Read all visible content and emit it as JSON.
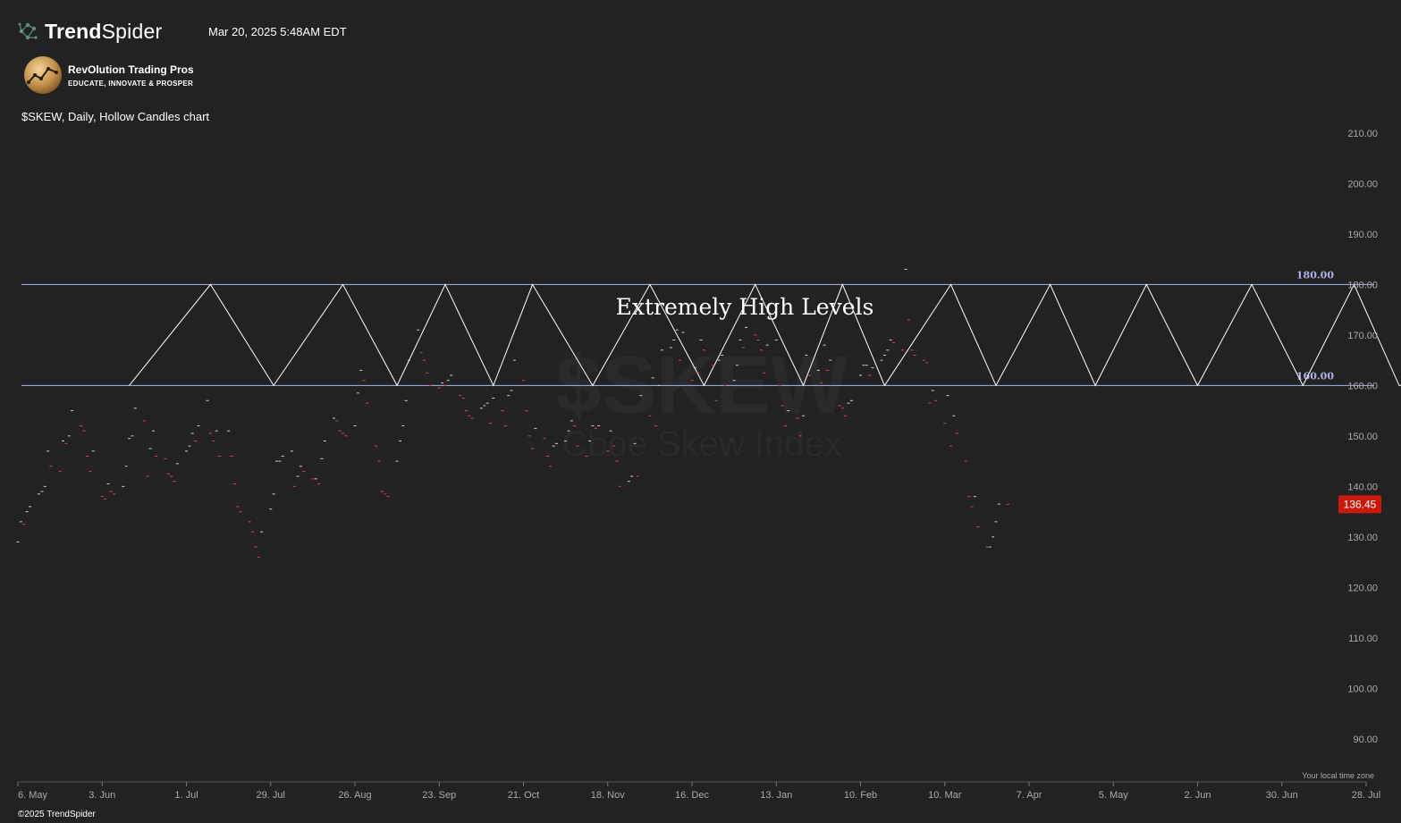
{
  "header": {
    "brand_prefix": "Trend",
    "brand_suffix": "Spider",
    "timestamp": "Mar 20, 2025 5:48AM EDT",
    "partner_name": "RevOlution Trading Pros",
    "partner_tagline": "EDUCATE, INNOVATE & PROSPER",
    "chart_title": "$SKEW, Daily, Hollow Candles chart"
  },
  "footer": {
    "copyright": "©2025 TrendSpider"
  },
  "colors": {
    "background": "#222222",
    "axis_text": "#aaaaaa",
    "level_line": "#aab4e8",
    "bull": "#cfcfcf",
    "bear": "#e0444b",
    "price_badge": "#c8190c"
  },
  "chart_data": {
    "type": "candlestick",
    "title": "$SKEW, Daily, Hollow Candles chart",
    "watermark_symbol": "$SKEW",
    "watermark_name": "Cboe Skew Index",
    "timezone_note": "Your local time zone",
    "y_ticks": [
      90,
      100,
      110,
      120,
      130,
      140,
      150,
      160,
      170,
      180,
      190,
      200,
      210
    ],
    "y_tick_labels": [
      "90.00",
      "100.00",
      "110.00",
      "120.00",
      "130.00",
      "140.00",
      "150.00",
      "160.00",
      "170.00",
      "180.00",
      "190.00",
      "200.00",
      "210.00"
    ],
    "ylim": [
      82,
      216
    ],
    "x_tick_labels": [
      "6. May",
      "3. Jun",
      "1. Jul",
      "29. Jul",
      "26. Aug",
      "23. Sep",
      "21. Oct",
      "18. Nov",
      "16. Dec",
      "13. Jan",
      "10. Feb",
      "10. Mar",
      "7. Apr",
      "5. May",
      "2. Jun",
      "30. Jun",
      "28. Jul"
    ],
    "date_range": [
      "2024-05-06",
      "2025-07-28"
    ],
    "last_price": 136.45,
    "last_price_label": "136.45",
    "levels": [
      {
        "value": 180,
        "label": "180.00"
      },
      {
        "value": 160,
        "label": "160.00"
      }
    ],
    "zone_annotation": {
      "text": "Extremely High Levels",
      "zigzag_dates": [
        "2024-06-12",
        "2024-07-09",
        "2024-07-30",
        "2024-08-22",
        "2024-09-09",
        "2024-09-25",
        "2024-10-11",
        "2024-10-24",
        "2024-11-13",
        "2024-12-02",
        "2024-12-20",
        "2025-01-06",
        "2025-01-22",
        "2025-02-04",
        "2025-02-18",
        "2025-03-12",
        "2025-03-27",
        "2025-04-14",
        "2025-04-29",
        "2025-05-16",
        "2025-06-02",
        "2025-06-20",
        "2025-07-07",
        "2025-07-24",
        "2025-08-08",
        "2025-08-20"
      ],
      "zigzag_values": [
        160,
        180,
        160,
        180,
        160,
        180,
        160,
        180,
        160,
        180,
        160,
        180,
        160,
        180,
        160,
        180,
        160,
        180,
        160,
        180,
        160,
        180,
        160,
        180,
        160,
        160
      ]
    },
    "candles": {
      "start_date": "2024-05-06",
      "trading_days_only": true,
      "closes": [
        129,
        133,
        132.5,
        135,
        136,
        138.5,
        139,
        140,
        147,
        144,
        143,
        149,
        148.5,
        150,
        155,
        152,
        151,
        146,
        143,
        147,
        138,
        137.5,
        140.5,
        139,
        138.5,
        140,
        144,
        149.5,
        150,
        155.5,
        153,
        142,
        147.5,
        151,
        146,
        145.5,
        142.5,
        142,
        141,
        144.5,
        147,
        148,
        150.5,
        149,
        152,
        157,
        150.5,
        149,
        151,
        146,
        151,
        146,
        140.5,
        136,
        135,
        133,
        131,
        128,
        126,
        131,
        135.5,
        138.5,
        145,
        145,
        146,
        147,
        140,
        142,
        144,
        143,
        141.5,
        141.5,
        140.5,
        145.5,
        149,
        153.5,
        153,
        151,
        150.5,
        150,
        152,
        158.5,
        163,
        161,
        156.5,
        148,
        145,
        139,
        138.5,
        138,
        145,
        149,
        152,
        157,
        165,
        171,
        166.5,
        165,
        162.5,
        160,
        159.5,
        160.5,
        160,
        161,
        162,
        158,
        157.5,
        155,
        154,
        153.5,
        155.5,
        156,
        156.5,
        152.5,
        157.5,
        155,
        152,
        158,
        159,
        165,
        161,
        155,
        150,
        147.5,
        151.5,
        149.5,
        146,
        144,
        148,
        148.5,
        149,
        151,
        153,
        152,
        148,
        146,
        149,
        152,
        151.5,
        152,
        147,
        151,
        148,
        145,
        140,
        141,
        142,
        148.5,
        142,
        158,
        154,
        161.5,
        152,
        160,
        167,
        167.5,
        169,
        171,
        165,
        170.5,
        161,
        163.5,
        162.5,
        169,
        167,
        164,
        157,
        165,
        166,
        160,
        161,
        164,
        169,
        167.5,
        171.5,
        170,
        169,
        167,
        162.5,
        168,
        169,
        160,
        156,
        152,
        155,
        153.5,
        150,
        154,
        166,
        162,
        163,
        160.5,
        168,
        163,
        165,
        156,
        155.5,
        154,
        156.5,
        157,
        162,
        164,
        164,
        162,
        163.5,
        165,
        166,
        167,
        169,
        168.5,
        167,
        183,
        173,
        167,
        166,
        165,
        164.5,
        156.5,
        159,
        157,
        152.5,
        158,
        148,
        154,
        150.5,
        145,
        138,
        136,
        138,
        132,
        128,
        128,
        130,
        133,
        136.5,
        136.45
      ]
    }
  }
}
